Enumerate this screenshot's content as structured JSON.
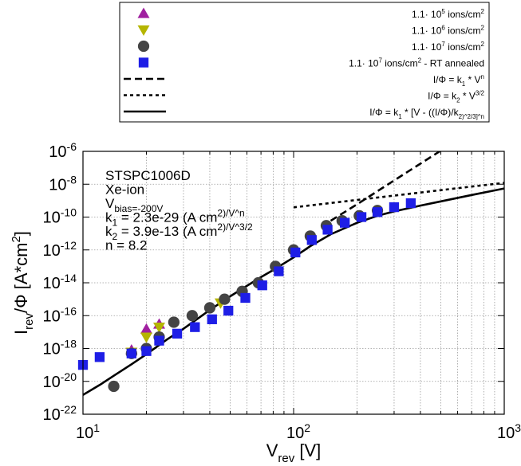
{
  "chart_data": {
    "type": "scatter",
    "x_scale": "log",
    "y_scale": "log",
    "xlim": [
      10,
      1000
    ],
    "ylim": [
      1e-22,
      1e-06
    ],
    "grid": true,
    "legend_placement": "top, above plot",
    "xlabel": {
      "main": "V",
      "sub": "rev",
      "tail": " [V]"
    },
    "ylabel": {
      "main": "I",
      "sub": "rev",
      "mid": "/Φ [A*cm",
      "sup": "2",
      "tail": "]"
    },
    "x_ticks": [
      {
        "value": 10,
        "base": "10",
        "exp": "1"
      },
      {
        "value": 100,
        "base": "10",
        "exp": "2"
      },
      {
        "value": 1000,
        "base": "10",
        "exp": "3"
      }
    ],
    "y_ticks": [
      {
        "value": 1e-06,
        "base": "10",
        "exp": "-6"
      },
      {
        "value": 1e-08,
        "base": "10",
        "exp": "-8"
      },
      {
        "value": 1e-10,
        "base": "10",
        "exp": "-10"
      },
      {
        "value": 1e-12,
        "base": "10",
        "exp": "-12"
      },
      {
        "value": 1e-14,
        "base": "10",
        "exp": "-14"
      },
      {
        "value": 1e-16,
        "base": "10",
        "exp": "-16"
      },
      {
        "value": 1e-18,
        "base": "10",
        "exp": "-18"
      },
      {
        "value": 1e-20,
        "base": "10",
        "exp": "-20"
      },
      {
        "value": 1e-22,
        "base": "10",
        "exp": "-22"
      }
    ],
    "annotation_lines": [
      "STSPC1006D",
      "Xe-ion",
      "V_bias=-200V",
      "k_1 = 2.3e-29 (A cm^2)/V^n",
      "k_2 = 3.9e-13 (A cm^2)/V^3/2",
      "n = 8.2"
    ],
    "legend": [
      {
        "marker": "triangle-up",
        "color": "#a020a0",
        "text": "1.1· 10^5 ions/cm^2"
      },
      {
        "marker": "triangle-down",
        "color": "#b5b500",
        "text": "1.1· 10^6 ions/cm^2"
      },
      {
        "marker": "circle",
        "color": "#444444",
        "text": "1.1· 10^7 ions/cm^2"
      },
      {
        "marker": "square",
        "color": "#1e1ee6",
        "text": "1.1· 10^7 ions/cm^2 - RT annealed"
      },
      {
        "marker": "line-dashed",
        "color": "#000000",
        "text": "I/Φ = k_1 * V^n"
      },
      {
        "marker": "line-dotted",
        "color": "#000000",
        "text": "I/Φ = k_2 * V^3/2"
      },
      {
        "marker": "line-solid",
        "color": "#000000",
        "text": "I/Φ = k_1 * [V - ((I/Φ)/k_2)^2/3]^n"
      }
    ],
    "series": [
      {
        "name": "1.1· 10^5 ions/cm^2",
        "marker": "triangle-up",
        "color": "#a020a0",
        "x": [
          17,
          20,
          23
        ],
        "y": [
          8e-19,
          1.5e-17,
          3e-17
        ]
      },
      {
        "name": "1.1· 10^6 ions/cm^2",
        "marker": "triangle-down",
        "color": "#b5b500",
        "x": [
          17,
          20,
          23,
          45
        ],
        "y": [
          6e-19,
          5e-18,
          2e-17,
          6e-16
        ]
      },
      {
        "name": "1.1· 10^7 ions/cm^2",
        "marker": "circle",
        "color": "#444444",
        "x": [
          14,
          17,
          20,
          23,
          27,
          33,
          40,
          47,
          57,
          68,
          82,
          100,
          120,
          143,
          170,
          205,
          250
        ],
        "y": [
          5e-21,
          5e-19,
          1e-18,
          5e-18,
          4e-17,
          1e-16,
          3e-16,
          1e-15,
          3e-15,
          1e-14,
          1e-13,
          1e-12,
          7e-12,
          3e-11,
          6e-11,
          1.2e-10,
          2.5e-10
        ]
      },
      {
        "name": "1.1· 10^7 ions/cm^2 - RT annealed",
        "marker": "square",
        "color": "#1e1ee6",
        "x": [
          10,
          12,
          17,
          20,
          23,
          28,
          34,
          41,
          49,
          59,
          71,
          85,
          102,
          122,
          145,
          175,
          210,
          250,
          300,
          360
        ],
        "y": [
          1e-19,
          3e-19,
          5e-19,
          7e-19,
          3e-18,
          8e-18,
          2e-17,
          6e-17,
          2e-16,
          1.2e-15,
          7e-15,
          5e-14,
          7e-13,
          4e-12,
          1.7e-11,
          4.5e-11,
          1e-10,
          2e-10,
          4e-10,
          7e-10
        ]
      }
    ],
    "fit_lines": [
      {
        "name": "I/Φ = k_1 * V^n",
        "style": "dashed",
        "x": [
          150,
          200,
          300,
          500,
          700,
          1000
        ],
        "y": [
          6e-11,
          6e-10,
          1.7e-08,
          1.1e-06,
          1.7e-05,
          0.0003
        ]
      },
      {
        "name": "I/Φ = k_2 * V^3/2",
        "style": "dotted",
        "x": [
          100,
          200,
          400,
          700,
          1000
        ],
        "y": [
          3.9e-10,
          1.1e-09,
          3.1e-09,
          7.2e-09,
          1.2e-08
        ]
      },
      {
        "name": "I/Φ = k_1 * [V - ((I/Φ)/k_2)^2/3]^n",
        "style": "solid",
        "x": [
          10,
          12,
          14,
          17,
          20,
          25,
          30,
          40,
          50,
          60,
          70,
          80,
          100,
          120,
          150,
          200,
          250,
          300,
          400,
          500,
          700,
          1000
        ],
        "y": [
          1.5e-21,
          6e-21,
          2.2e-20,
          1.1e-19,
          4.5e-19,
          3.5e-18,
          1.6e-17,
          2.2e-16,
          1.5e-15,
          6.5e-15,
          2.2e-14,
          6e-14,
          3.5e-13,
          1.7e-12,
          9e-12,
          4.5e-11,
          1.2e-10,
          2.2e-10,
          5e-10,
          9e-10,
          2.2e-09,
          5.5e-09
        ]
      }
    ]
  }
}
